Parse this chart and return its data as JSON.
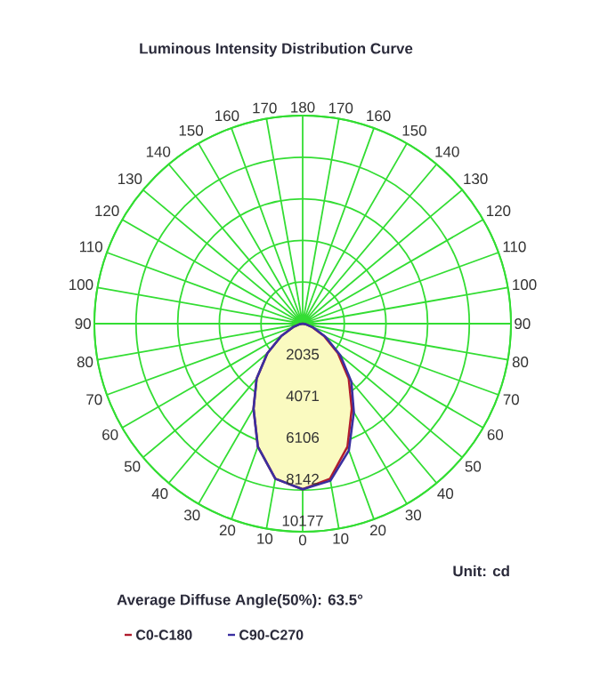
{
  "chart_data": {
    "type": "radar",
    "title": "Luminous Intensity Distribution Curve",
    "categories": [
      "180",
      "170",
      "160",
      "150",
      "140",
      "130",
      "120",
      "110",
      "100",
      "90",
      "80",
      "70",
      "60",
      "50",
      "40",
      "30",
      "20",
      "10",
      "0",
      "10",
      "20",
      "30",
      "40",
      "50",
      "60",
      "70",
      "80",
      "90",
      "100",
      "110",
      "120",
      "130",
      "140",
      "150",
      "160",
      "170"
    ],
    "series": [
      {
        "name": "C0-C180",
        "color": "#b01c2e",
        "values": [
          0,
          0,
          0,
          0,
          0,
          0,
          0,
          0,
          0,
          0,
          150,
          500,
          1200,
          2250,
          3500,
          4800,
          6400,
          7700,
          8100,
          7700,
          6400,
          4800,
          3500,
          2250,
          1200,
          500,
          150,
          0,
          0,
          0,
          0,
          0,
          0,
          0,
          0,
          0
        ]
      },
      {
        "name": "C90-C270",
        "color": "#3a2fa0",
        "values": [
          0,
          0,
          0,
          0,
          0,
          0,
          0,
          0,
          0,
          0,
          150,
          550,
          1300,
          2400,
          3700,
          5000,
          6600,
          7800,
          8100,
          7700,
          6400,
          4800,
          3500,
          2250,
          1200,
          500,
          150,
          0,
          0,
          0,
          0,
          0,
          0,
          0,
          0,
          0
        ]
      }
    ],
    "ylim": [
      0,
      10177
    ],
    "yticks": [
      2035,
      4071,
      6106,
      8142,
      10177
    ],
    "grid": true,
    "legend": "bottom",
    "annotations": [
      "Unit: cd",
      "Average Diffuse Angle(50%): 63.5°"
    ]
  }
}
